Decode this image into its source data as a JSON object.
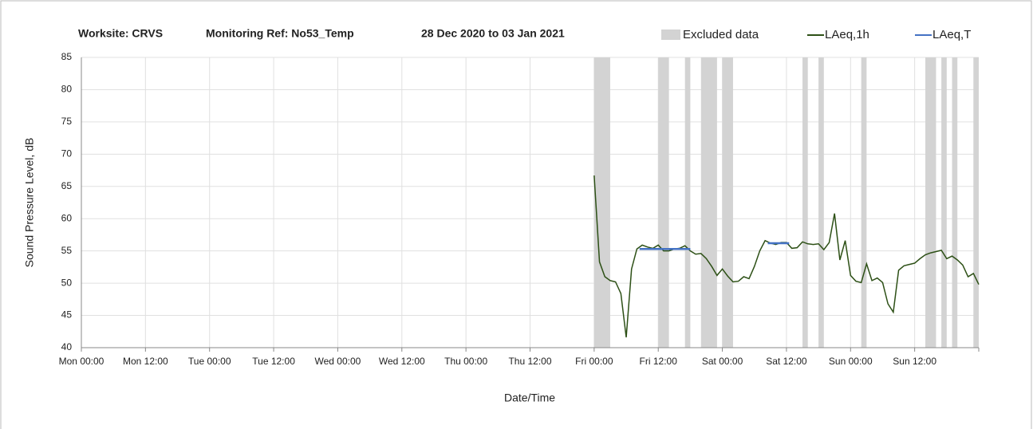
{
  "chart_data": {
    "type": "line",
    "title": [
      "Worksite: CRVS",
      "Monitoring Ref: No53_Temp",
      "28 Dec 2020 to 03 Jan 2021"
    ],
    "ylabel": "Sound Pressure Level, dB",
    "xlabel": "Date/Time",
    "xlim": [
      0,
      168
    ],
    "ylim": [
      40,
      85
    ],
    "yticks": [
      40,
      45,
      50,
      55,
      60,
      65,
      70,
      75,
      80,
      85
    ],
    "xticks": [
      {
        "value": 0,
        "label": "Mon 00:00"
      },
      {
        "value": 12,
        "label": "Mon 12:00"
      },
      {
        "value": 24,
        "label": "Tue 00:00"
      },
      {
        "value": 36,
        "label": "Tue 12:00"
      },
      {
        "value": 48,
        "label": "Wed 00:00"
      },
      {
        "value": 60,
        "label": "Wed 12:00"
      },
      {
        "value": 72,
        "label": "Thu 00:00"
      },
      {
        "value": 84,
        "label": "Thu 12:00"
      },
      {
        "value": 96,
        "label": "Fri 00:00"
      },
      {
        "value": 108,
        "label": "Fri 12:00"
      },
      {
        "value": 120,
        "label": "Sat 00:00"
      },
      {
        "value": 132,
        "label": "Sat 12:00"
      },
      {
        "value": 144,
        "label": "Sun 00:00"
      },
      {
        "value": 156,
        "label": "Sun 12:00"
      }
    ],
    "grid": true,
    "excluded": {
      "name": "Excluded data",
      "color": "#d3d3d3",
      "ranges": [
        [
          96,
          99
        ],
        [
          108,
          110
        ],
        [
          113,
          114
        ],
        [
          116,
          119
        ],
        [
          120,
          122
        ],
        [
          135,
          136
        ],
        [
          138,
          139
        ],
        [
          146,
          147
        ],
        [
          158,
          160
        ],
        [
          161,
          162
        ],
        [
          163,
          164
        ],
        [
          167,
          168
        ]
      ]
    },
    "series": [
      {
        "name": "LAeq,1h",
        "color": "#2d5016",
        "x": [
          96,
          97,
          98,
          99,
          100,
          101,
          102,
          103,
          104,
          105,
          106,
          107,
          108,
          109,
          110,
          111,
          112,
          113,
          114,
          115,
          116,
          117,
          118,
          119,
          120,
          121,
          122,
          123,
          124,
          125,
          126,
          127,
          128,
          129,
          130,
          131,
          132,
          133,
          134,
          135,
          136,
          137,
          138,
          139,
          140,
          141,
          142,
          143,
          144,
          145,
          146,
          147,
          148,
          149,
          150,
          151,
          152,
          153,
          154,
          155,
          156,
          157,
          158,
          159,
          160,
          161,
          162,
          163,
          164,
          165,
          166,
          167,
          168
        ],
        "values": [
          66.7,
          53.3,
          51,
          50.4,
          50.2,
          48.4,
          41.6,
          52.2,
          55.3,
          55.9,
          55.6,
          55.4,
          55.9,
          55,
          55,
          55.3,
          55.4,
          55.8,
          55,
          54.5,
          54.6,
          53.8,
          52.6,
          51.2,
          52.2,
          51.1,
          50.2,
          50.3,
          51,
          50.7,
          52.6,
          55,
          56.6,
          56.2,
          56,
          56.3,
          56.3,
          55.4,
          55.5,
          56.4,
          56.1,
          56,
          56.1,
          55.2,
          56.3,
          60.8,
          53.6,
          56.6,
          51.2,
          50.3,
          50.1,
          53,
          50.4,
          50.8,
          50.1,
          46.8,
          45.5,
          52,
          52.7,
          52.9,
          53.1,
          53.8,
          54.4,
          54.7,
          54.9,
          55.1,
          53.8,
          54.2,
          53.6,
          52.8,
          51,
          51.5,
          49.8
        ]
      },
      {
        "name": "LAeq,T",
        "color": "#4472c4",
        "x": [
          104.5,
          114,
          null,
          128.5,
          132.5
        ],
        "values": [
          55.3,
          55.3,
          null,
          56.2,
          56.2
        ]
      }
    ]
  }
}
